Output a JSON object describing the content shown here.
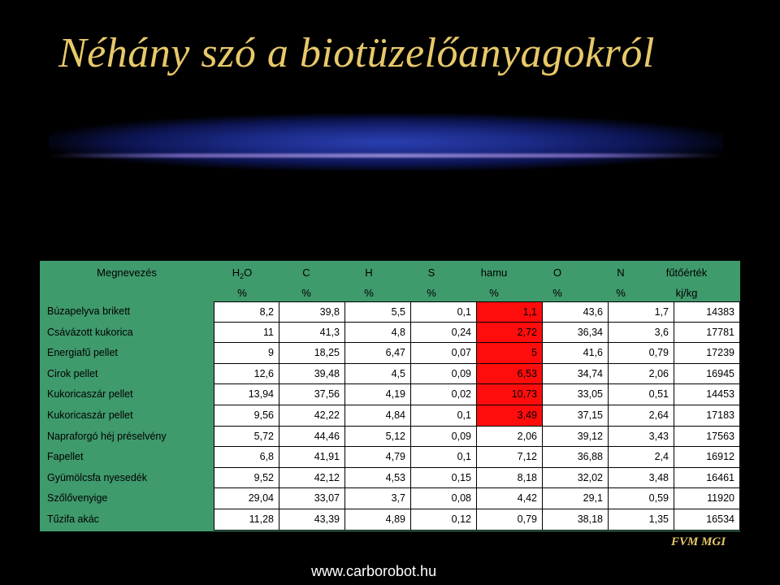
{
  "slide": {
    "title": "Néhány szó a biotüzelőanyagokról",
    "footer_logo": "FVM MGI",
    "footer_url": "www.carborobot.hu"
  },
  "table": {
    "columns": [
      {
        "name": "Megnevezés",
        "unit": ""
      },
      {
        "name": "H",
        "sub": "2",
        "suffix": "O",
        "unit": "%"
      },
      {
        "name": "C",
        "unit": "%"
      },
      {
        "name": "H",
        "unit": "%"
      },
      {
        "name": "S",
        "unit": "%"
      },
      {
        "name": "hamu",
        "unit": "%"
      },
      {
        "name": "O",
        "unit": "%"
      },
      {
        "name": "N",
        "unit": "%"
      },
      {
        "name": "fűtőérték",
        "unit": "kj/kg"
      }
    ],
    "rows": [
      {
        "name": "Búzapelyva brikett",
        "values": [
          "8,2",
          "39,8",
          "5,5",
          "0,1",
          "1,1",
          "43,6",
          "1,7",
          "14383"
        ],
        "highlight_hamu": true
      },
      {
        "name": "Csávázott kukorica",
        "values": [
          "11",
          "41,3",
          "4,8",
          "0,24",
          "2,72",
          "36,34",
          "3,6",
          "17781"
        ],
        "highlight_hamu": true
      },
      {
        "name": "Energiafű pellet",
        "values": [
          "9",
          "18,25",
          "6,47",
          "0,07",
          "5",
          "41,6",
          "0,79",
          "17239"
        ],
        "highlight_hamu": true
      },
      {
        "name": "Cirok pellet",
        "values": [
          "12,6",
          "39,48",
          "4,5",
          "0,09",
          "6,53",
          "34,74",
          "2,06",
          "16945"
        ],
        "highlight_hamu": true
      },
      {
        "name": "Kukoricaszár pellet",
        "values": [
          "13,94",
          "37,56",
          "4,19",
          "0,02",
          "10,73",
          "33,05",
          "0,51",
          "14453"
        ],
        "highlight_hamu": true
      },
      {
        "name": "Kukoricaszár pellet",
        "values": [
          "9,56",
          "42,22",
          "4,84",
          "0,1",
          "3,49",
          "37,15",
          "2,64",
          "17183"
        ],
        "highlight_hamu": true
      },
      {
        "name": "Napraforgó héj préselvény",
        "values": [
          "5,72",
          "44,46",
          "5,12",
          "0,09",
          "2,06",
          "39,12",
          "3,43",
          "17563"
        ],
        "highlight_hamu": false
      },
      {
        "name": "Fapellet",
        "values": [
          "6,8",
          "41,91",
          "4,79",
          "0,1",
          "7,12",
          "36,88",
          "2,4",
          "16912"
        ],
        "highlight_hamu": false
      },
      {
        "name": "Gyümölcsfa nyesedék",
        "values": [
          "9,52",
          "42,12",
          "4,53",
          "0,15",
          "8,18",
          "32,02",
          "3,48",
          "16461"
        ],
        "highlight_hamu": false
      },
      {
        "name": "Szőlővenyige",
        "values": [
          "29,04",
          "33,07",
          "3,7",
          "0,08",
          "4,42",
          "29,1",
          "0,59",
          "11920"
        ],
        "highlight_hamu": false
      },
      {
        "name": "Tűzifa akác",
        "values": [
          "11,28",
          "43,39",
          "4,89",
          "0,12",
          "0,79",
          "38,18",
          "1,35",
          "16534"
        ],
        "highlight_hamu": false
      }
    ]
  },
  "colors": {
    "background": "#000000",
    "title": "#e8c96a",
    "table_header_bg": "#3f9a6c",
    "highlight": "#ff0d0d"
  }
}
